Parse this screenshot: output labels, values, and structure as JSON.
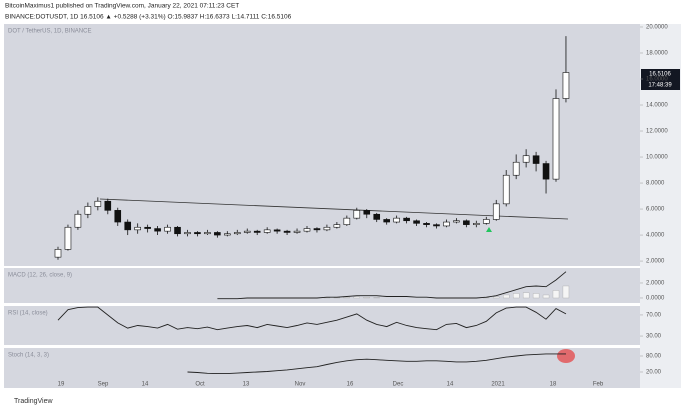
{
  "header": {
    "line1": "BitcoinMaximus1 published on TradingView.com, January 22, 2021 07:11:23 CET",
    "line2": "BINANCE:DOTUSDT, 1D  16.5106 ▲ +0.5288 (+3.31%) O:15.9837 H:16.6373 L:14.7111 C:16.5106"
  },
  "last_price_label": "16.5106",
  "countdown": "17:48:39",
  "footer": "TradingView",
  "chart_data": [
    {
      "type": "candlestick",
      "title": "DOT / TetherUS, 1D, BINANCE",
      "open": [
        2.3,
        2.9,
        4.6,
        5.6,
        6.2,
        6.6,
        5.9,
        5.0,
        4.4,
        4.6,
        4.5,
        4.3,
        4.6,
        4.1,
        4.2,
        4.1,
        4.2,
        4.0,
        4.1,
        4.2,
        4.3,
        4.2,
        4.4,
        4.3,
        4.2,
        4.3,
        4.5,
        4.4,
        4.6,
        4.8,
        5.3,
        5.9,
        5.6,
        5.2,
        5.0,
        5.3,
        5.1,
        4.9,
        4.8,
        4.7,
        5.0,
        5.1,
        4.8,
        4.9,
        5.2,
        6.4,
        8.6,
        9.6,
        10.1,
        9.5,
        8.3,
        14.5
      ],
      "high": [
        3.1,
        4.8,
        5.9,
        6.5,
        6.9,
        6.8,
        6.1,
        5.2,
        4.9,
        4.8,
        4.7,
        4.8,
        4.7,
        4.4,
        4.3,
        4.4,
        4.3,
        4.3,
        4.4,
        4.5,
        4.4,
        4.6,
        4.5,
        4.4,
        4.5,
        4.7,
        4.6,
        4.8,
        5.0,
        5.5,
        6.1,
        6.0,
        5.7,
        5.3,
        5.5,
        5.4,
        5.2,
        5.0,
        4.9,
        5.2,
        5.3,
        5.2,
        5.1,
        5.4,
        6.7,
        9.0,
        10.2,
        10.6,
        10.4,
        9.7,
        15.2,
        19.3
      ],
      "low": [
        2.1,
        2.8,
        4.4,
        5.3,
        5.9,
        5.6,
        4.7,
        4.0,
        4.1,
        4.2,
        4.0,
        4.1,
        3.9,
        3.9,
        3.9,
        4.0,
        3.8,
        3.9,
        4.0,
        4.1,
        4.0,
        4.1,
        4.1,
        4.0,
        4.1,
        4.2,
        4.2,
        4.3,
        4.5,
        4.7,
        5.2,
        5.3,
        5.0,
        4.8,
        4.9,
        4.9,
        4.7,
        4.6,
        4.5,
        4.6,
        4.9,
        4.6,
        4.6,
        4.8,
        5.1,
        6.2,
        8.3,
        9.2,
        8.9,
        7.2,
        8.1,
        14.2
      ],
      "close": [
        2.9,
        4.6,
        5.6,
        6.2,
        6.6,
        5.9,
        5.0,
        4.4,
        4.6,
        4.5,
        4.3,
        4.6,
        4.1,
        4.2,
        4.1,
        4.2,
        4.0,
        4.1,
        4.2,
        4.3,
        4.2,
        4.4,
        4.3,
        4.2,
        4.3,
        4.5,
        4.4,
        4.6,
        4.8,
        5.3,
        5.9,
        5.6,
        5.2,
        5.0,
        5.3,
        5.1,
        4.9,
        4.8,
        4.7,
        5.0,
        5.1,
        4.8,
        4.9,
        5.2,
        6.4,
        8.6,
        9.6,
        10.1,
        9.5,
        8.3,
        14.5,
        16.5
      ],
      "ylim": [
        1.62,
        20.23
      ],
      "yticks": [
        {
          "value": 2,
          "label": "2.0000"
        },
        {
          "value": 4,
          "label": "4.0000"
        },
        {
          "value": 6,
          "label": "6.0000"
        },
        {
          "value": 8,
          "label": "8.0000"
        },
        {
          "value": 10,
          "label": "10.0000"
        },
        {
          "value": 12,
          "label": "12.0000"
        },
        {
          "value": 14,
          "label": "14.0000"
        },
        {
          "value": 16,
          "label": "16.0000"
        },
        {
          "value": 18,
          "label": "18.0000"
        },
        {
          "value": 20,
          "label": "20.0000"
        }
      ],
      "time_labels": [
        "19",
        "Sep",
        "14",
        "Oct",
        "13",
        "Nov",
        "16",
        "Dec",
        "14",
        "2021",
        "18",
        "Feb"
      ]
    },
    {
      "type": "macd",
      "title": "MACD (12, 26, close, 9)",
      "color": "#222222",
      "values": [
        null,
        null,
        null,
        null,
        null,
        null,
        null,
        null,
        null,
        null,
        null,
        null,
        null,
        null,
        null,
        null,
        -0.1,
        -0.1,
        -0.1,
        0.0,
        0.0,
        0.0,
        0.0,
        0.0,
        0.0,
        0.0,
        0.0,
        0.1,
        0.1,
        0.2,
        0.3,
        0.3,
        0.3,
        0.2,
        0.2,
        0.2,
        0.1,
        0.1,
        0.0,
        0.0,
        0.0,
        0.0,
        0.0,
        0.1,
        0.3,
        0.7,
        1.1,
        1.5,
        1.6,
        1.5,
        2.4,
        3.5
      ],
      "histogram": [
        null,
        null,
        null,
        null,
        null,
        null,
        null,
        null,
        null,
        null,
        null,
        null,
        null,
        null,
        null,
        null,
        0.0,
        0.0,
        0.0,
        0.0,
        0.0,
        0.0,
        0.0,
        0.0,
        0.0,
        0.0,
        0.0,
        0.05,
        0.05,
        0.1,
        0.15,
        0.1,
        0.05,
        0.0,
        0.0,
        0.0,
        0.0,
        0.0,
        0.0,
        0.0,
        0.0,
        0.0,
        0.0,
        0.05,
        0.15,
        0.4,
        0.6,
        0.7,
        0.6,
        0.4,
        1.0,
        1.6
      ],
      "ylim": [
        -0.67,
        4.0
      ],
      "yticks": [
        {
          "value": 0,
          "label": "0.0000"
        },
        {
          "value": 2,
          "label": "2.0000"
        }
      ]
    },
    {
      "type": "line",
      "title": "RSI (14, close)",
      "color": "#222222",
      "values": [
        60,
        80,
        84,
        85,
        85,
        70,
        55,
        45,
        50,
        48,
        45,
        52,
        43,
        46,
        44,
        47,
        42,
        45,
        48,
        50,
        46,
        52,
        49,
        46,
        50,
        55,
        52,
        56,
        60,
        66,
        72,
        60,
        52,
        48,
        56,
        50,
        46,
        44,
        42,
        52,
        54,
        46,
        50,
        58,
        74,
        83,
        85,
        85,
        75,
        62,
        82,
        72
      ],
      "ylim": [
        13,
        87
      ],
      "yticks": [
        {
          "value": 30,
          "label": "30.00"
        },
        {
          "value": 70,
          "label": "70.00"
        }
      ]
    },
    {
      "type": "line",
      "title": "Stoch (14, 3, 3)",
      "color": "#222222",
      "values": [
        null,
        null,
        null,
        null,
        null,
        null,
        null,
        null,
        null,
        null,
        null,
        null,
        null,
        20,
        18,
        15,
        14,
        14,
        16,
        18,
        20,
        22,
        25,
        28,
        32,
        36,
        40,
        48,
        56,
        62,
        66,
        68,
        66,
        64,
        62,
        60,
        60,
        62,
        62,
        60,
        58,
        58,
        60,
        64,
        70,
        76,
        80,
        84,
        86,
        88,
        88,
        88
      ],
      "ylim": [
        -10,
        110
      ],
      "yticks": [
        {
          "value": 20,
          "label": "20.00"
        },
        {
          "value": 80,
          "label": "80.00"
        }
      ]
    }
  ]
}
